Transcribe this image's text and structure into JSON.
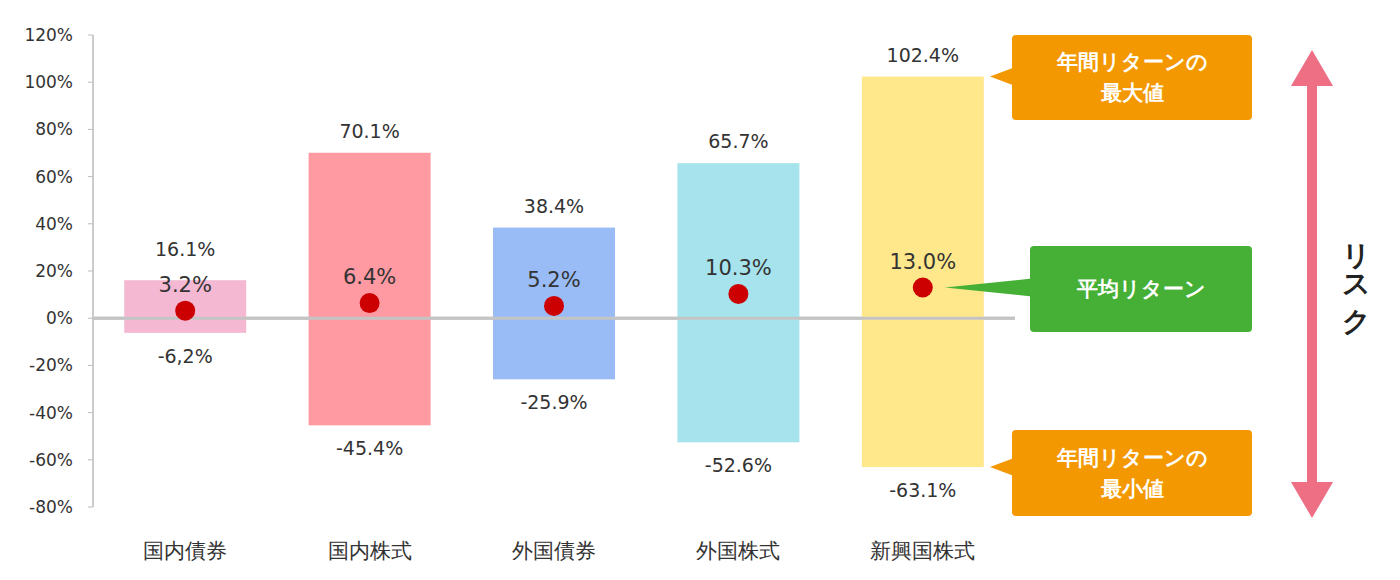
{
  "chart_data": {
    "type": "range_bar",
    "categories": [
      "国内債券",
      "国内株式",
      "外国債券",
      "外国株式",
      "新興国株式"
    ],
    "colors": [
      "#f4b8d3",
      "#ff9aa2",
      "#99bcf6",
      "#a6e3ec",
      "#ffe88c"
    ],
    "high": {
      "values": [
        16.1,
        70.1,
        38.4,
        65.7,
        102.4
      ],
      "value_labels": [
        "16.1%",
        "70.1%",
        "38.4%",
        "65.7%",
        "102.4%"
      ]
    },
    "low": {
      "values": [
        -6.2,
        -45.4,
        -25.9,
        -52.6,
        -63.1
      ],
      "value_labels": [
        "-6,2%",
        "-45.4%",
        "-25.9%",
        "-52.6%",
        "-63.1%"
      ]
    },
    "mean": {
      "values": [
        3.2,
        6.4,
        5.2,
        10.3,
        13.0
      ],
      "value_labels": [
        "3.2%",
        "6.4%",
        "5.2%",
        "10.3%",
        "13.0%"
      ],
      "color": "#cc0000",
      "marker": "circle"
    },
    "annotations": {
      "max": [
        "年間リターンの",
        "最大値"
      ],
      "mean": "平均リターン",
      "min": [
        "年間リターンの",
        "最小値"
      ],
      "risk": "リスク"
    },
    "ylim": [
      -80,
      120
    ],
    "yticks": [
      {
        "value": -80,
        "label": "-80%"
      },
      {
        "value": -60,
        "label": "-60%"
      },
      {
        "value": -40,
        "label": "-40%"
      },
      {
        "value": -20,
        "label": "-20%"
      },
      {
        "value": 0,
        "label": "0%"
      },
      {
        "value": 20,
        "label": "20%"
      },
      {
        "value": 40,
        "label": "40%"
      },
      {
        "value": 60,
        "label": "60%"
      },
      {
        "value": 80,
        "label": "80%"
      },
      {
        "value": 100,
        "label": "100%"
      },
      {
        "value": 120,
        "label": "120%"
      }
    ],
    "grid": false,
    "data_labels": true
  }
}
